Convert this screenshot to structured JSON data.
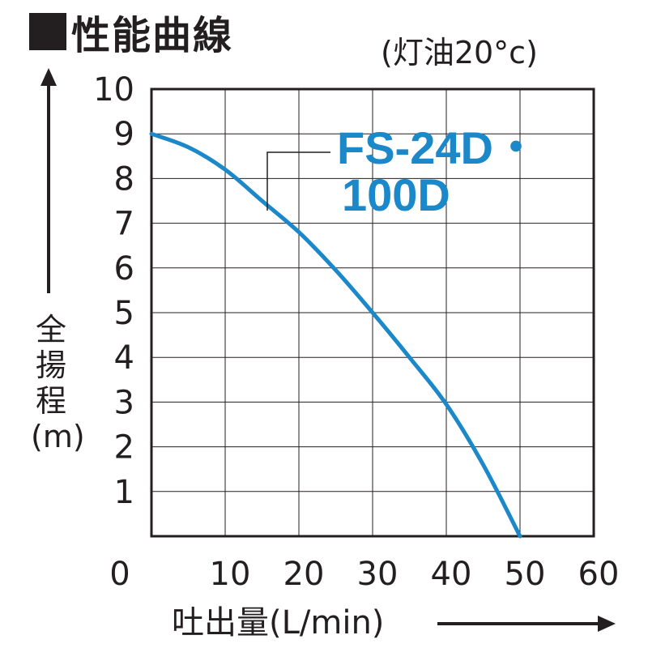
{
  "title": "性能曲線",
  "condition": "(灯油20°c)",
  "chart_data": {
    "type": "line",
    "xlabel": "吐出量(L/min)",
    "ylabel": "全揚程(m)",
    "xlim": [
      0,
      60
    ],
    "ylim": [
      0,
      10
    ],
    "xticks": [
      "0",
      "10",
      "20",
      "30",
      "40",
      "50",
      "60"
    ],
    "yticks": [
      "1",
      "2",
      "3",
      "4",
      "5",
      "6",
      "7",
      "8",
      "9",
      "10"
    ],
    "grid": true,
    "series": [
      {
        "name": "FS-24D・100D",
        "color": "#1a88c9",
        "x": [
          0,
          5,
          10,
          15,
          20,
          25,
          30,
          35,
          40,
          45,
          50
        ],
        "y": [
          9.0,
          8.7,
          8.2,
          7.5,
          6.8,
          5.95,
          5.0,
          4.0,
          2.95,
          1.6,
          0
        ]
      }
    ]
  }
}
